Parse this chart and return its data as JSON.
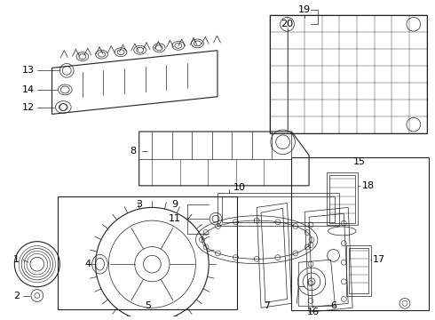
{
  "bg_color": "#ffffff",
  "line_color": "#222222",
  "label_color": "#000000",
  "figsize": [
    4.9,
    3.6
  ],
  "dpi": 100
}
